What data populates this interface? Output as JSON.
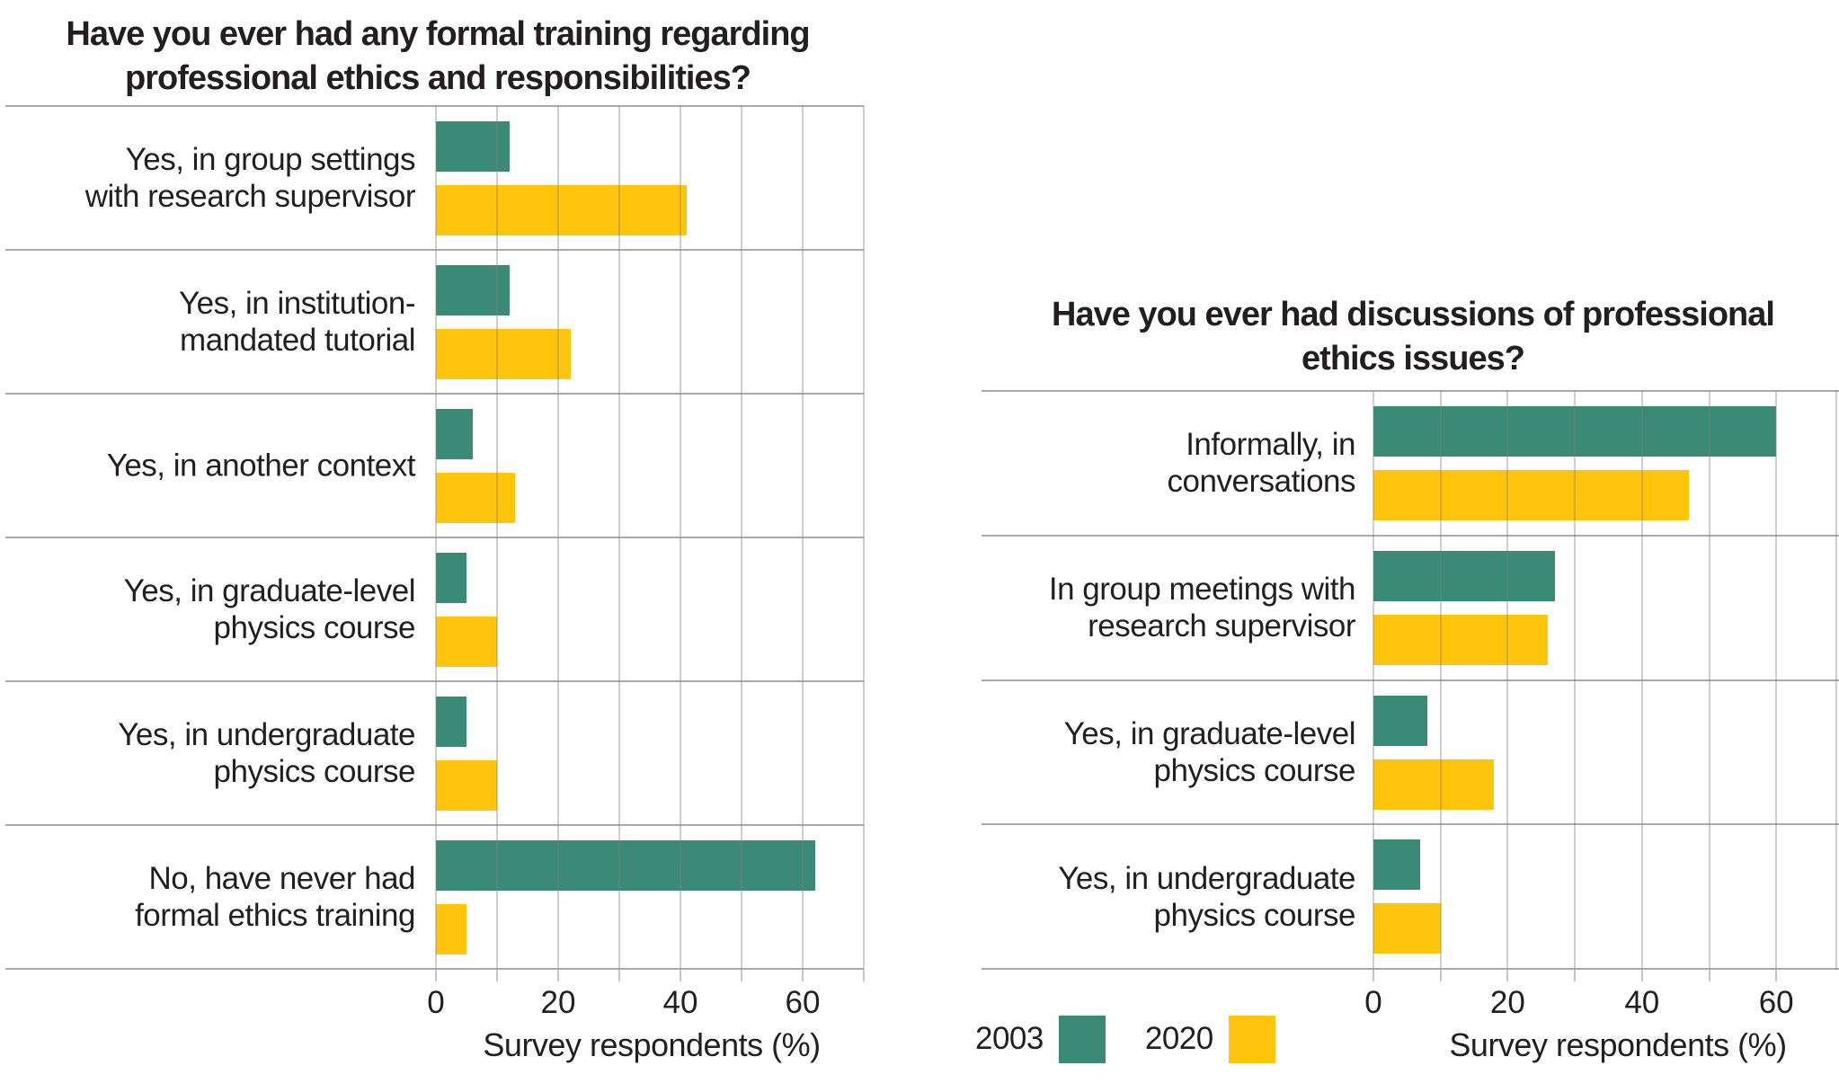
{
  "page": {
    "background": "#ffffff"
  },
  "colors": {
    "series_2003": "#3A8A76",
    "series_2020": "#FFC40C",
    "gridline": "#c8cbce",
    "divider": "#a7abae",
    "text": "#231f20"
  },
  "legend": {
    "entries": [
      {
        "label": "2003",
        "color_key": "series_2003"
      },
      {
        "label": "2020",
        "color_key": "series_2020"
      }
    ]
  },
  "chart_data": [
    {
      "type": "bar",
      "orientation": "horizontal",
      "title_lines": [
        "Have you ever had any formal training regarding",
        "professional ethics and responsibilities?"
      ],
      "categories": [
        {
          "label_lines": [
            "Yes, in group settings",
            "with research supervisor"
          ]
        },
        {
          "label_lines": [
            "Yes, in institution-",
            "mandated tutorial"
          ]
        },
        {
          "label_lines": [
            "Yes, in another context"
          ]
        },
        {
          "label_lines": [
            "Yes, in graduate-level",
            "physics course"
          ]
        },
        {
          "label_lines": [
            "Yes, in undergraduate",
            "physics course"
          ]
        },
        {
          "label_lines": [
            "No, have never had",
            "formal ethics training"
          ]
        }
      ],
      "series": [
        {
          "name": "2003",
          "color_key": "series_2003",
          "values": [
            12,
            12,
            6,
            5,
            5,
            62
          ]
        },
        {
          "name": "2020",
          "color_key": "series_2020",
          "values": [
            41,
            22,
            13,
            10,
            10,
            5
          ]
        }
      ],
      "xlabel": "Survey respondents (%)",
      "xticks": [
        0,
        20,
        40,
        60
      ],
      "xlim": [
        0,
        70
      ],
      "grid_interval": 10,
      "grid": true
    },
    {
      "type": "bar",
      "orientation": "horizontal",
      "title_lines": [
        "Have you ever had discussions of professional",
        "ethics issues?"
      ],
      "categories": [
        {
          "label_lines": [
            "Informally, in",
            "conversations"
          ]
        },
        {
          "label_lines": [
            "In group meetings with",
            "research supervisor"
          ]
        },
        {
          "label_lines": [
            "Yes, in graduate-level",
            "physics course"
          ]
        },
        {
          "label_lines": [
            "Yes, in undergraduate",
            "physics course"
          ]
        }
      ],
      "series": [
        {
          "name": "2003",
          "color_key": "series_2003",
          "values": [
            60,
            27,
            8,
            7
          ]
        },
        {
          "name": "2020",
          "color_key": "series_2020",
          "values": [
            47,
            26,
            18,
            10
          ]
        }
      ],
      "xlabel": "Survey respondents (%)",
      "xticks": [
        0,
        20,
        40,
        60
      ],
      "xlim": [
        0,
        70
      ],
      "grid_interval": 10,
      "grid": true
    }
  ]
}
